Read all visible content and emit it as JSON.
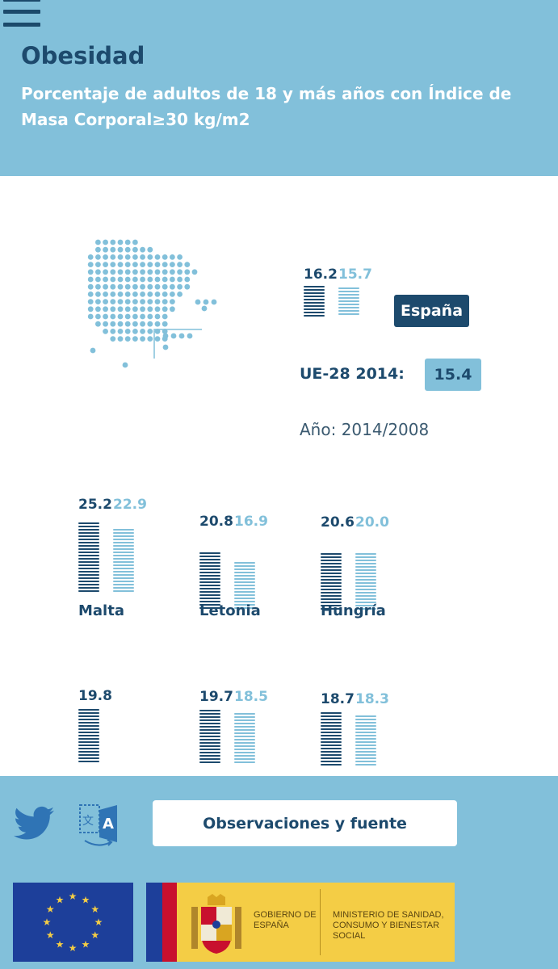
{
  "header": {
    "title": "Obesidad",
    "subtitle": "Porcentaje de adultos de 18 y más años con Índice de Masa Corporal≥30 kg/m2"
  },
  "spain": {
    "value_recent": "16.2",
    "value_previous": "15.7",
    "label": "España"
  },
  "eu": {
    "label": "UE-28 2014:",
    "value": "15.4"
  },
  "year_label": "Año: 2014/2008",
  "countries": [
    {
      "name": "Malta",
      "value_recent": "25.2",
      "value_previous": "22.9"
    },
    {
      "name": "Letonia",
      "value_recent": "20.8",
      "value_previous": "16.9"
    },
    {
      "name": "Hungría",
      "value_recent": "20.6",
      "value_previous": "20.0"
    },
    {
      "name": "",
      "value_recent": "19.8",
      "value_previous": ""
    },
    {
      "name": "",
      "value_recent": "19.7",
      "value_previous": "18.5"
    },
    {
      "name": "",
      "value_recent": "18.7",
      "value_previous": "18.3"
    }
  ],
  "footer": {
    "observations_button": "Observaciones y fuente",
    "gov_line1": "GOBIERNO DE ESPAÑA",
    "gov_line2": "MINISTERIO DE SANIDAD, CONSUMO Y BIENESTAR SOCIAL"
  },
  "colors": {
    "primary_dark": "#1d4a6d",
    "accent_light": "#82c0da",
    "eu_blue": "#1d3f9a",
    "gov_yellow": "#f4cd45",
    "gov_red": "#c8102e"
  },
  "icons": [
    "menu-icon",
    "twitter-icon",
    "translate-icon"
  ]
}
